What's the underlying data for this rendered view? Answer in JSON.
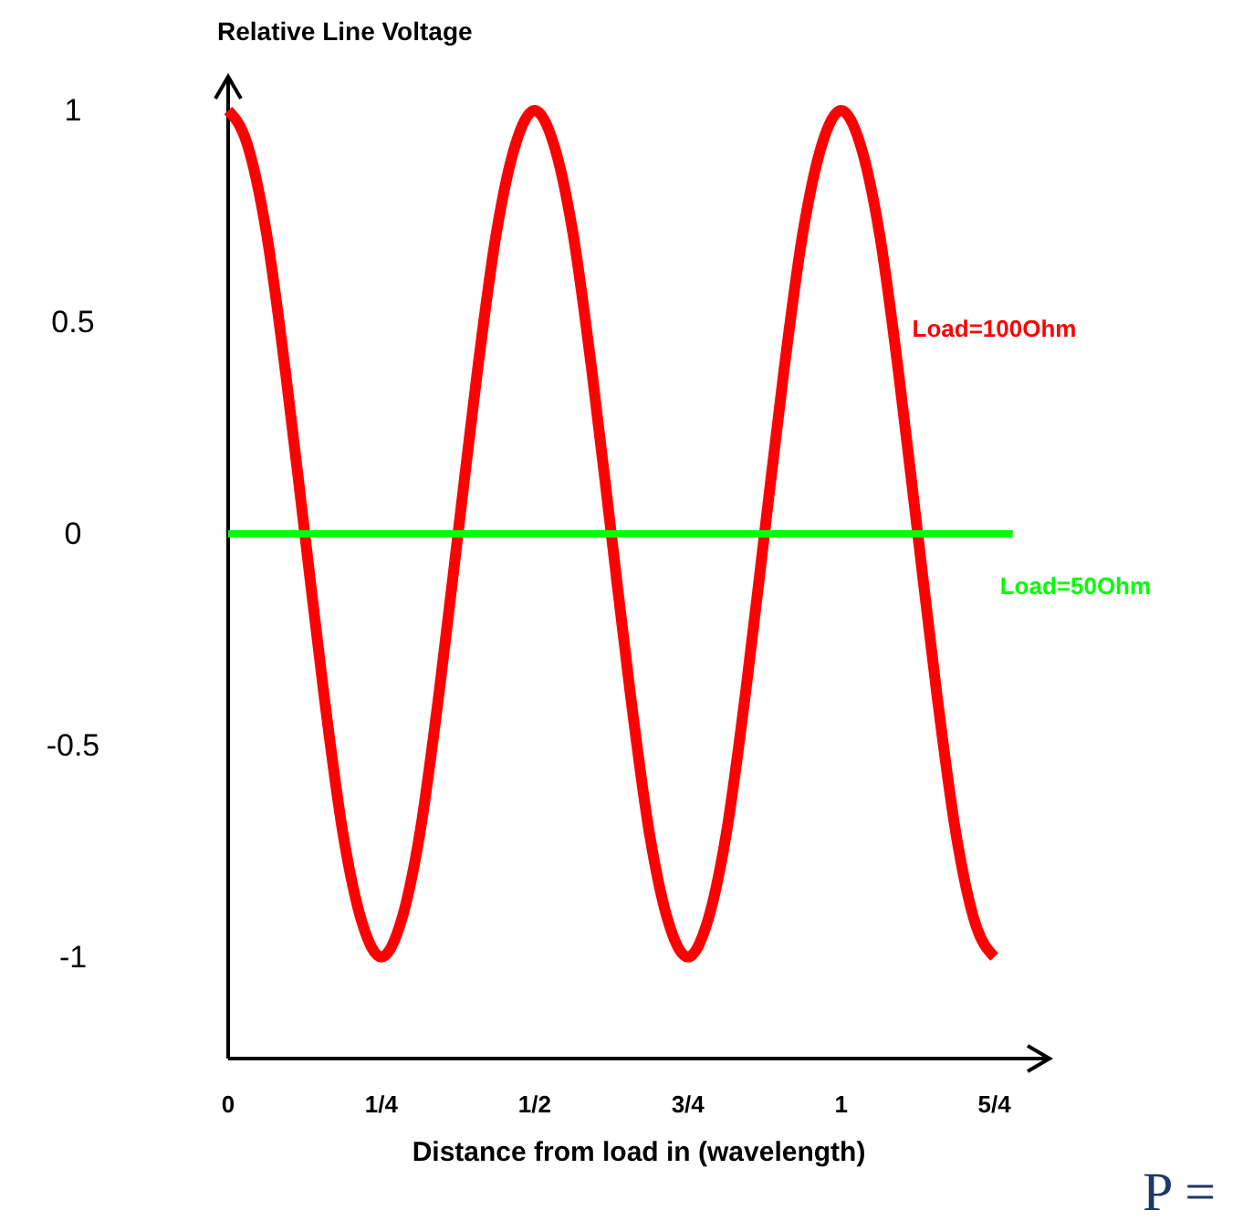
{
  "chart_data": {
    "type": "line",
    "ylabel": "Relative Line Voltage",
    "xlabel": "Distance from load in (wavelength)",
    "xlim": [
      0,
      1.34
    ],
    "ylim": [
      -1.24,
      1.08
    ],
    "xticks": [
      0,
      {
        "value": 0.25,
        "label": "1/4"
      },
      {
        "value": 0.5,
        "label": "1/2"
      },
      {
        "value": 0.75,
        "label": "3/4"
      },
      1,
      {
        "value": 1.25,
        "label": "5/4"
      }
    ],
    "yticks": [
      1,
      0.5,
      0,
      -0.5,
      -1
    ],
    "grid": false,
    "legend": false,
    "marker": "none",
    "line_style": "solid",
    "series": [
      {
        "name": "Load=100Ohm",
        "color": "#ff0000",
        "x": [
          0,
          0.03125,
          0.0625,
          0.09375,
          0.125,
          0.15625,
          0.1875,
          0.21875,
          0.25,
          0.28125,
          0.3125,
          0.34375,
          0.375,
          0.40625,
          0.4375,
          0.46875,
          0.5,
          0.53125,
          0.5625,
          0.59375,
          0.625,
          0.65625,
          0.6875,
          0.71875,
          0.75,
          0.78125,
          0.8125,
          0.84375,
          0.875,
          0.90625,
          0.9375,
          0.96875,
          1,
          1.03125,
          1.0625,
          1.09375,
          1.125,
          1.15625,
          1.1875,
          1.21875,
          1.25
        ],
        "values": [
          1,
          0.92,
          0.71,
          0.38,
          0,
          -0.38,
          -0.71,
          -0.92,
          -1,
          -0.92,
          -0.71,
          -0.38,
          0,
          0.38,
          0.71,
          0.92,
          1,
          0.92,
          0.71,
          0.38,
          0,
          -0.38,
          -0.71,
          -0.92,
          -1,
          -0.92,
          -0.71,
          -0.38,
          0,
          0.38,
          0.71,
          0.92,
          1,
          0.92,
          0.71,
          0.38,
          0,
          -0.38,
          -0.71,
          -0.92,
          -1
        ]
      },
      {
        "name": "Load=50Ohm",
        "color": "#00ff00",
        "x": [
          0,
          1.28
        ],
        "values": [
          0,
          0
        ]
      }
    ],
    "annotations": [
      "P ="
    ]
  }
}
